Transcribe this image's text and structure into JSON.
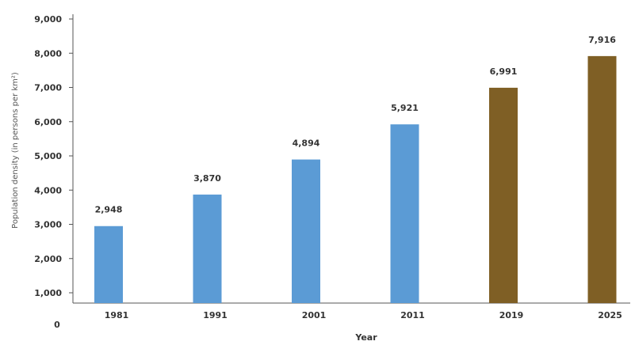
{
  "chart_data": {
    "type": "bar",
    "categories": [
      "1981",
      "1991",
      "2001",
      "2011",
      "2019",
      "2025"
    ],
    "values": [
      2948,
      3870,
      4894,
      5921,
      6991,
      7916
    ],
    "data_labels": [
      "2,948",
      "3,870",
      "4,894",
      "5,921",
      "6,991",
      "7,916"
    ],
    "xlabel": "Year",
    "ylabel": "Population density (in persons per km²)",
    "ylim": [
      1000,
      9000
    ],
    "y_ticks": [
      "0",
      "1,000",
      "2,000",
      "3,000",
      "4,000",
      "5,000",
      "6,000",
      "7,000",
      "8,000",
      "9,000"
    ],
    "y_tick_values": [
      0,
      1000,
      2000,
      3000,
      4000,
      5000,
      6000,
      7000,
      8000,
      9000
    ],
    "grid": false,
    "legend": "none",
    "colors": {
      "historical": "#5b9bd5",
      "projected": "#7f5f25"
    },
    "bar_colors": [
      "historical",
      "historical",
      "historical",
      "historical",
      "projected",
      "projected"
    ]
  }
}
